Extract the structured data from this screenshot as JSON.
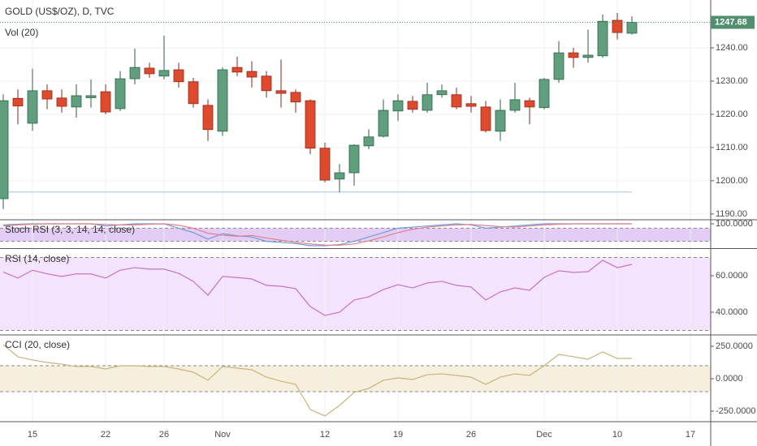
{
  "chart_data": [
    {
      "type": "candlestick",
      "title": "GOLD (US$/OZ), D, TVC",
      "subtitle": "Vol (20)",
      "categories": [
        null,
        null,
        "15",
        null,
        null,
        null,
        null,
        "22",
        null,
        null,
        null,
        "26",
        null,
        null,
        null,
        "Nov",
        null,
        null,
        null,
        null,
        null,
        null,
        "12",
        null,
        null,
        null,
        null,
        "19",
        null,
        null,
        null,
        null,
        "26",
        null,
        null,
        null,
        null,
        "Dec",
        null,
        null,
        null,
        null,
        "10",
        null,
        null,
        null,
        null,
        "17"
      ],
      "open": [
        1194.6,
        1224.8,
        1217.3,
        1227.1,
        1224.9,
        1222.2,
        1225.0,
        1226.8,
        1221.7,
        1230.7,
        1233.9,
        1231.5,
        1233.4,
        1229.8,
        1222.7,
        1214.9,
        1234.1,
        1232.9,
        1231.5,
        1227.1,
        1226.6,
        1224.1,
        1209.8,
        1200.5,
        1202.4,
        1210.5,
        1213.4,
        1221.0,
        1223.9,
        1221.2,
        1225.9,
        1225.9,
        1223.2,
        1222.2,
        1214.9,
        1221.2,
        1224.1,
        1222.0,
        1230.5,
        1238.5,
        1237.1,
        1237.6,
        1248.3,
        1244.4,
        null,
        null,
        null,
        null
      ],
      "high": [
        1226.0,
        1227.5,
        1233.7,
        1229.0,
        1227.5,
        1229.0,
        1230.5,
        1229.0,
        1233.0,
        1239.8,
        1235.5,
        1243.7,
        1235.5,
        1231.0,
        1224.5,
        1234.1,
        1237.3,
        1236.0,
        1233.0,
        1236.5,
        1227.5,
        1224.5,
        1211.5,
        1205.0,
        1211.0,
        1215.5,
        1224.5,
        1226.0,
        1225.5,
        1229.5,
        1229.0,
        1228.0,
        1225.5,
        1224.0,
        1224.5,
        1229.5,
        1225.0,
        1231.0,
        1242.0,
        1240.0,
        1245.5,
        1250.0,
        1250.5,
        1249.5,
        null,
        null,
        null,
        null
      ],
      "low": [
        1191.5,
        1217.0,
        1215.0,
        1221.5,
        1220.5,
        1219.0,
        1222.0,
        1220.0,
        1221.0,
        1229.0,
        1231.0,
        1230.5,
        1228.0,
        1222.0,
        1212.0,
        1213.5,
        1231.5,
        1228.0,
        1225.0,
        1222.0,
        1220.5,
        1208.0,
        1199.5,
        1196.5,
        1198.5,
        1209.5,
        1213.0,
        1218.0,
        1220.5,
        1220.5,
        1225.0,
        1221.5,
        1220.5,
        1214.5,
        1212.0,
        1220.5,
        1217.0,
        1221.5,
        1229.5,
        1234.0,
        1235.5,
        1237.0,
        1242.5,
        1244.0,
        null,
        null,
        null,
        null
      ],
      "close": [
        1224.1,
        1222.5,
        1227.1,
        1224.6,
        1222.4,
        1225.6,
        1225.6,
        1220.7,
        1230.7,
        1234.1,
        1232.2,
        1233.2,
        1229.8,
        1223.2,
        1215.4,
        1233.4,
        1232.7,
        1231.2,
        1227.1,
        1226.3,
        1223.7,
        1209.8,
        1200.2,
        1202.4,
        1210.7,
        1213.2,
        1221.2,
        1224.1,
        1221.5,
        1225.9,
        1227.1,
        1222.2,
        1222.4,
        1215.1,
        1221.2,
        1224.4,
        1222.2,
        1230.5,
        1238.5,
        1237.1,
        1237.8,
        1248.0,
        1244.6,
        1247.68,
        null,
        null,
        null,
        null
      ],
      "up_color": "#5f9f7e",
      "down_color": "#de4a2e",
      "support_line": {
        "value": 1196.6,
        "color": "#a9cdea"
      },
      "ylim": [
        1188.5,
        1254.4
      ],
      "yticks": [
        {
          "value": 1190,
          "label": "1190.00"
        },
        {
          "value": 1200,
          "label": "1200.00"
        },
        {
          "value": 1210,
          "label": "1210.00"
        },
        {
          "value": 1220,
          "label": "1220.00"
        },
        {
          "value": 1230,
          "label": "1230.00"
        },
        {
          "value": 1240,
          "label": "1240.00"
        }
      ],
      "grid": true
    },
    {
      "type": "line",
      "title": "Stoch RSI (3, 3, 14, 14, close)",
      "series": [
        {
          "color": "#6f9be0",
          "values": [
            95,
            98,
            100,
            100,
            100,
            100,
            100,
            90,
            95,
            100,
            100,
            100,
            80,
            60,
            30,
            55,
            45,
            40,
            20,
            15,
            10,
            0,
            0,
            5,
            20,
            40,
            60,
            80,
            85,
            90,
            95,
            100,
            95,
            80,
            85,
            90,
            95,
            100,
            100,
            100,
            100,
            100,
            100,
            100
          ]
        },
        {
          "color": "#e57f8a",
          "values": [
            90,
            95,
            98,
            100,
            100,
            100,
            100,
            97,
            95,
            95,
            98,
            100,
            93,
            80,
            57,
            48,
            43,
            47,
            35,
            25,
            15,
            8,
            3,
            2,
            8,
            22,
            40,
            60,
            75,
            85,
            90,
            95,
            97,
            92,
            87,
            85,
            90,
            95,
            98,
            100,
            100,
            100,
            100,
            100
          ]
        }
      ],
      "bands": [
        80,
        20
      ],
      "band_color": "#e3cdf5",
      "ylim": [
        -7.4,
        114.8
      ],
      "yticks": [
        {
          "value": 100,
          "label": "100.0000"
        }
      ]
    },
    {
      "type": "line",
      "title": "RSI (14, close)",
      "color": "#c573c4",
      "values": [
        62,
        58.7,
        63,
        61,
        59.6,
        61,
        61,
        58.7,
        63,
        64.4,
        63.6,
        63.6,
        61.3,
        56.9,
        49.3,
        59.6,
        59,
        58.2,
        54.7,
        54.2,
        52.9,
        43.1,
        38.2,
        40,
        46.7,
        48.4,
        52.4,
        55.1,
        53.3,
        56,
        56.9,
        54.7,
        53.8,
        46.7,
        51.1,
        53.3,
        52,
        59.1,
        62.7,
        61.8,
        62.2,
        68.4,
        64.4,
        66.2
      ],
      "bands": [
        70,
        30
      ],
      "band_color": "#f4e3fc",
      "ylim": [
        28,
        74.2
      ],
      "yticks": [
        {
          "value": 40,
          "label": "40.0000"
        },
        {
          "value": 60,
          "label": "60.0000"
        }
      ]
    },
    {
      "type": "line",
      "title": "CCI (20, close)",
      "color": "#c9b27c",
      "values": [
        262,
        169,
        144,
        125,
        112,
        94,
        94,
        75,
        100,
        100,
        94,
        94,
        75,
        50,
        -12,
        94,
        81,
        69,
        12,
        -19,
        -44,
        -237,
        -287,
        -206,
        -106,
        -75,
        -12,
        6,
        -6,
        31,
        37,
        25,
        12,
        -44,
        12,
        37,
        25,
        100,
        187,
        169,
        150,
        206,
        156,
        156
      ],
      "bands": [
        100,
        -100
      ],
      "band_color": "#f6efde",
      "ylim": [
        -331,
        331
      ],
      "yticks": [
        {
          "value": -250,
          "label": "-250.0000"
        },
        {
          "value": 0,
          "label": "0.0000"
        },
        {
          "value": 250,
          "label": "250.0000"
        }
      ]
    }
  ]
}
